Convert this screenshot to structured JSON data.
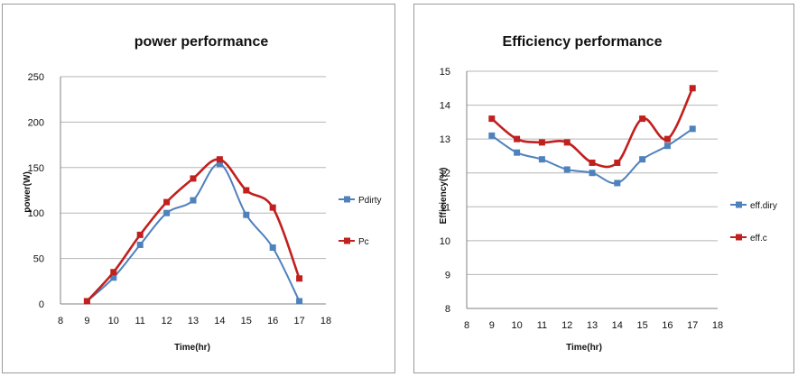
{
  "chart_data": [
    {
      "id": "power",
      "type": "line",
      "title": "power performance",
      "xlabel": "Time(hr)",
      "ylabel": "power(W)",
      "xlim": [
        8,
        18
      ],
      "ylim": [
        0,
        250
      ],
      "xticks": [
        8,
        9,
        10,
        11,
        12,
        13,
        14,
        15,
        16,
        17,
        18
      ],
      "yticks": [
        0,
        50,
        100,
        150,
        200,
        250
      ],
      "grid": "horizontal",
      "legend_position": "right",
      "x": [
        9,
        10,
        11,
        12,
        13,
        14,
        15,
        16,
        17
      ],
      "series": [
        {
          "name": "Pdirty",
          "color": "#4f81bd",
          "marker": "square",
          "values": [
            3,
            29,
            65,
            100,
            114,
            154,
            98,
            62,
            3
          ]
        },
        {
          "name": "Pc",
          "color": "#c0201e",
          "marker": "square",
          "values": [
            3,
            35,
            76,
            112,
            138,
            159,
            125,
            106,
            28
          ]
        }
      ]
    },
    {
      "id": "efficiency",
      "type": "line",
      "title": "Efficiency performance",
      "xlabel": "Time(hr)",
      "ylabel": "Efficiency(%)",
      "xlim": [
        8,
        18
      ],
      "ylim": [
        8,
        15
      ],
      "xticks": [
        8,
        9,
        10,
        11,
        12,
        13,
        14,
        15,
        16,
        17,
        18
      ],
      "yticks": [
        8,
        9,
        10,
        11,
        12,
        13,
        14,
        15
      ],
      "grid": "horizontal",
      "legend_position": "right",
      "x": [
        9,
        10,
        11,
        12,
        13,
        14,
        15,
        16,
        17
      ],
      "series": [
        {
          "name": "eff.diry",
          "color": "#4f81bd",
          "marker": "square",
          "values": [
            13.1,
            12.6,
            12.4,
            12.1,
            12.0,
            11.7,
            12.4,
            12.8,
            13.3
          ]
        },
        {
          "name": "eff.c",
          "color": "#c0201e",
          "marker": "square",
          "values": [
            13.6,
            13.0,
            12.9,
            12.9,
            12.3,
            12.3,
            13.6,
            13.0,
            14.5
          ]
        }
      ]
    }
  ]
}
